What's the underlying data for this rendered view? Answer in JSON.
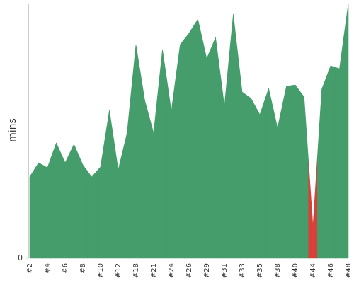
{
  "chart_data": {
    "type": "area",
    "y_label": "mins",
    "categories": [
      "#2",
      null,
      "#4",
      null,
      "#6",
      null,
      "#8",
      null,
      "#10",
      null,
      "#12",
      null,
      "#18",
      null,
      "#21",
      null,
      "#24",
      null,
      "#26",
      null,
      "#29",
      null,
      "#31",
      null,
      "#33",
      null,
      "#35",
      null,
      "#38",
      null,
      "#40",
      null,
      "#44",
      null,
      "#46",
      null,
      "#48"
    ],
    "values": [
      11.5,
      13.5,
      12.8,
      16.3,
      13.5,
      16.1,
      13.2,
      11.5,
      12.9,
      20.9,
      12.5,
      17.7,
      30.2,
      22.3,
      17.7,
      29.5,
      20.8,
      30.2,
      31.8,
      33.8,
      28.2,
      31.2,
      21.5,
      34.5,
      23.5,
      22.6,
      20.3,
      24,
      18.4,
      24.3,
      24.5,
      22.8,
      4.5,
      23.9,
      27.2,
      26.8,
      36
    ],
    "colors": [
      "#449d6b",
      "#449d6b",
      "#449d6b",
      "#449d6b",
      "#449d6b",
      "#449d6b",
      "#449d6b",
      "#449d6b",
      "#449d6b",
      "#449d6b",
      "#449d6b",
      "#449d6b",
      "#449d6b",
      "#449d6b",
      "#449d6b",
      "#449d6b",
      "#449d6b",
      "#449d6b",
      "#449d6b",
      "#449d6b",
      "#449d6b",
      "#449d6b",
      "#449d6b",
      "#449d6b",
      "#449d6b",
      "#449d6b",
      "#449d6b",
      "#449d6b",
      "#449d6b",
      "#449d6b",
      "#449d6b",
      "#449d6b",
      "#d9403a",
      "#449d6b",
      "#449d6b",
      "#449d6b",
      "#449d6b"
    ],
    "ylim": [
      0,
      36
    ],
    "yticks": [
      0
    ]
  }
}
